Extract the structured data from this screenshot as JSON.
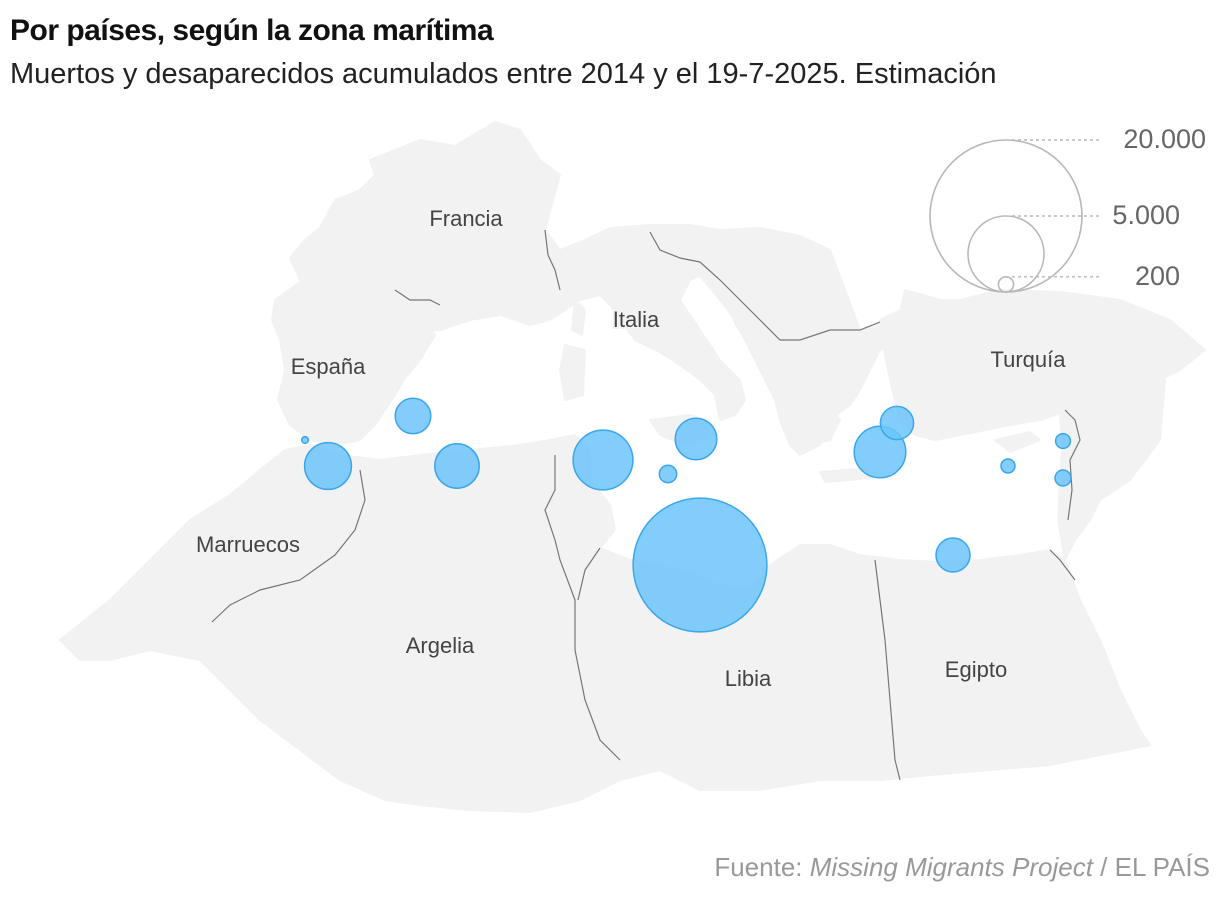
{
  "header": {
    "title": "Por países, según la zona marítima",
    "subtitle": "Muertos y desaparecidos acumulados entre 2014 y el 19-7-2025. Estimación"
  },
  "colors": {
    "land": "#f2f2f2",
    "border": "#777777",
    "bubble_fill": "#6cc4fa",
    "bubble_stroke": "#3aa6ec",
    "legend_circle": "#b8b8b8"
  },
  "countries": [
    {
      "id": "francia",
      "label": "Francia"
    },
    {
      "id": "italia",
      "label": "Italia"
    },
    {
      "id": "espana",
      "label": "España"
    },
    {
      "id": "turquia",
      "label": "Turquía"
    },
    {
      "id": "marruecos",
      "label": "Marruecos"
    },
    {
      "id": "argelia",
      "label": "Argelia"
    },
    {
      "id": "libia",
      "label": "Libia"
    },
    {
      "id": "egipto",
      "label": "Egipto"
    }
  ],
  "legend": {
    "values": [
      20000,
      5000,
      200
    ],
    "labels": [
      "20.000",
      "5.000",
      "200"
    ]
  },
  "bubbles": [
    {
      "id": "libya-central",
      "value": 15500
    },
    {
      "id": "tunisia-coast",
      "value": 3100
    },
    {
      "id": "algeria-west",
      "value": 1900
    },
    {
      "id": "alboran",
      "value": 1700
    },
    {
      "id": "greece-west-turkey",
      "value": 2300
    },
    {
      "id": "algeria-east",
      "value": 1800
    },
    {
      "id": "egypt-coast",
      "value": 1000
    },
    {
      "id": "sicily-south",
      "value": 1500
    },
    {
      "id": "balearic",
      "value": 1100
    },
    {
      "id": "aegean-north",
      "value": 950
    },
    {
      "id": "malta",
      "value": 260
    },
    {
      "id": "cyprus",
      "value": 170
    },
    {
      "id": "lebanon",
      "value": 190
    },
    {
      "id": "israel",
      "value": 220
    },
    {
      "id": "strait-gibraltar",
      "value": 40
    }
  ],
  "source": {
    "prefix": "Fuente: ",
    "italic": "Missing Migrants Project",
    "suffix": " / EL PAÍS"
  }
}
